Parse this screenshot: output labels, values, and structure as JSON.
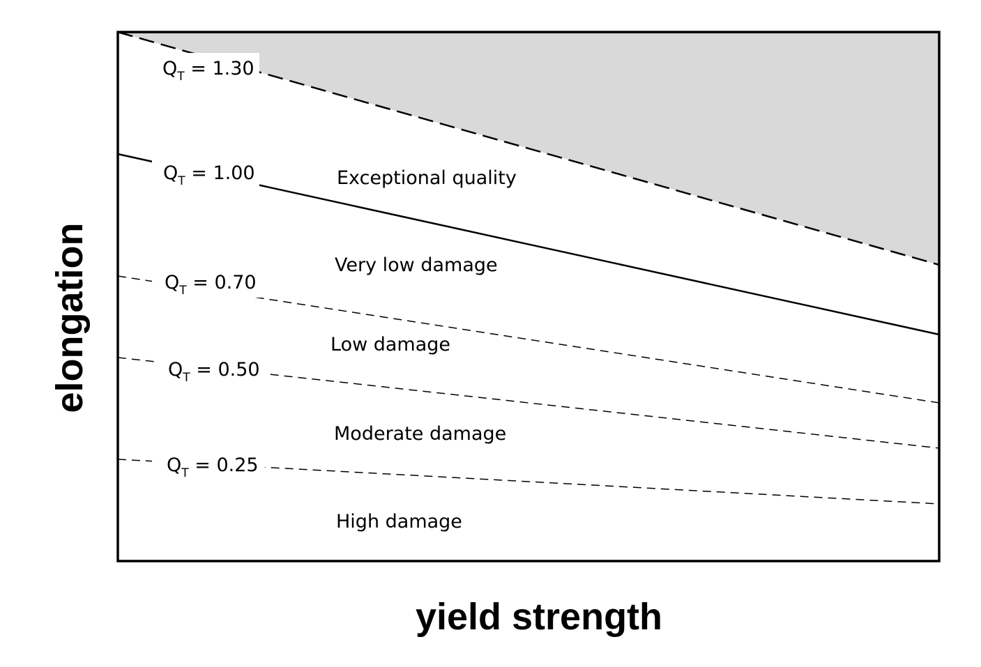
{
  "axes": {
    "x_label": "yield strength",
    "y_label": "elongation"
  },
  "curves": [
    {
      "symbol": "Q",
      "subscript": "T",
      "value": " = 1.30"
    },
    {
      "symbol": "Q",
      "subscript": "T",
      "value": " = 1.00"
    },
    {
      "symbol": "Q",
      "subscript": "T",
      "value": " = 0.70"
    },
    {
      "symbol": "Q",
      "subscript": "T",
      "value": " = 0.50"
    },
    {
      "symbol": "Q",
      "subscript": "T",
      "value": " = 0.25"
    }
  ],
  "regions": [
    "Exceptional quality",
    "Very low damage",
    "Low damage",
    "Moderate damage",
    "High damage"
  ]
}
